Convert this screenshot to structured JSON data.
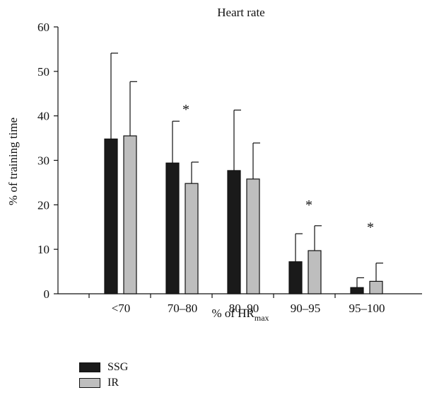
{
  "chart_data": {
    "type": "bar",
    "title": "Heart rate",
    "xlabel": "% of HR",
    "xlabel_sub": "max",
    "ylabel": "% of training time",
    "ylim": [
      0,
      60
    ],
    "yticks": [
      0,
      10,
      20,
      30,
      40,
      50,
      60
    ],
    "categories": [
      "<70",
      "70–80",
      "80–90",
      "90–95",
      "95–100"
    ],
    "series": [
      {
        "name": "SSG",
        "color": "#1a1a1a",
        "values": [
          34.8,
          29.4,
          27.7,
          7.2,
          1.4
        ],
        "error": [
          19.3,
          9.4,
          13.6,
          6.3,
          2.2
        ]
      },
      {
        "name": "IR",
        "color": "#bebebe",
        "values": [
          35.5,
          24.8,
          25.8,
          9.7,
          2.8
        ],
        "error": [
          12.2,
          4.8,
          8.1,
          5.6,
          4.1
        ]
      }
    ],
    "annotations": [
      {
        "category": "70–80",
        "text": "*",
        "y": 42
      },
      {
        "category": "90–95",
        "text": "*",
        "y": 20.5
      },
      {
        "category": "95–100",
        "text": "*",
        "y": 15.5
      }
    ],
    "legend_position": "bottom-left",
    "grid": false
  }
}
